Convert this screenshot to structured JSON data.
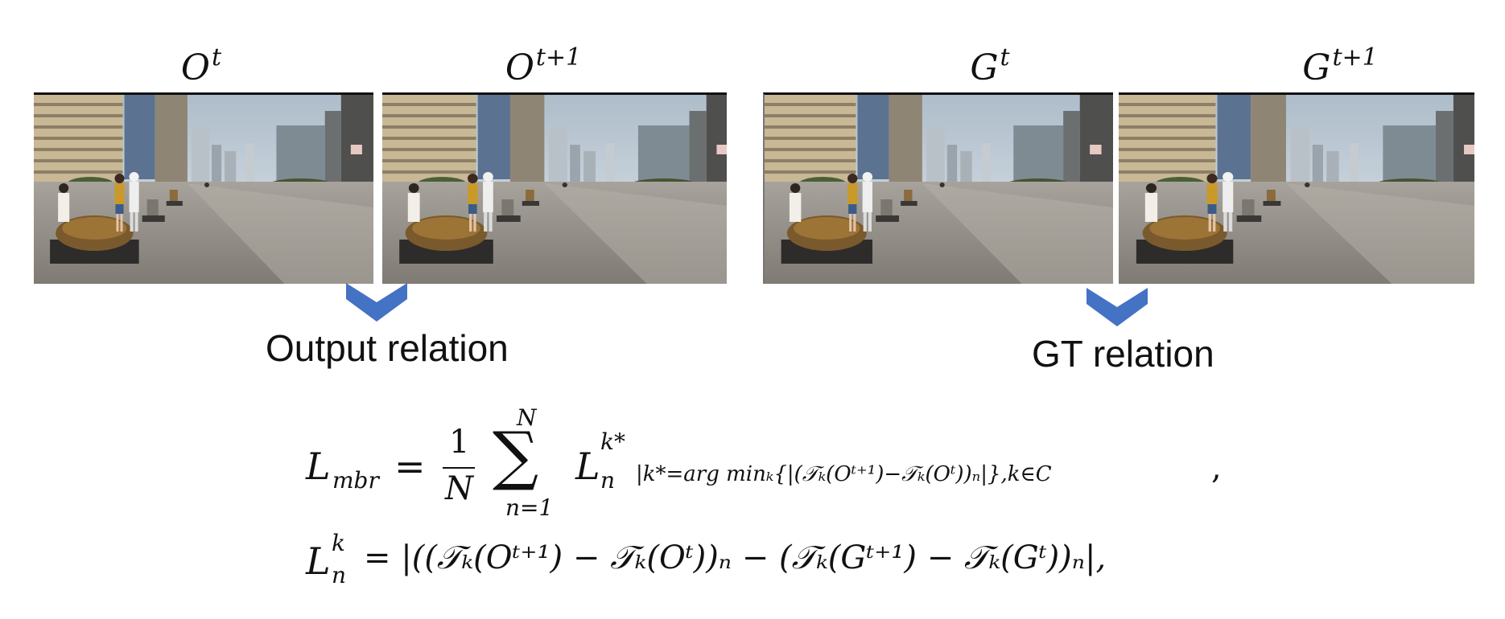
{
  "titles": {
    "o_t": {
      "base": "O",
      "sup": "t"
    },
    "o_t1": {
      "base": "O",
      "sup": "t+1"
    },
    "g_t": {
      "base": "G",
      "sup": "t"
    },
    "g_t1": {
      "base": "G",
      "sup": "t+1"
    }
  },
  "labels": {
    "output_relation": "Output relation",
    "gt_relation": "GT relation"
  },
  "colors": {
    "arrow": "#4472c4"
  },
  "icons": {
    "arrow": "chevron-down-icon"
  },
  "equation": {
    "line1": {
      "lhs": "L",
      "lhs_sub": "mbr",
      "eq": "=",
      "frac_num": "1",
      "frac_den": "N",
      "sum_top": "N",
      "sum_bottom": "n=1",
      "term": "L",
      "term_sub": "n",
      "term_sup": "k*",
      "condition": "|k*=arg minₖ{|(𝒯ₖ(Oᵗ⁺¹)−𝒯ₖ(Oᵗ))ₙ|},k∈C",
      "trail": ","
    },
    "line2": {
      "lhs": "L",
      "lhs_sub": "n",
      "lhs_sup": "k",
      "rhs": "= |((𝒯ₖ(Oᵗ⁺¹) − 𝒯ₖ(Oᵗ))ₙ − (𝒯ₖ(Gᵗ⁺¹) − 𝒯ₖ(Gᵗ))ₙ|,"
    }
  }
}
